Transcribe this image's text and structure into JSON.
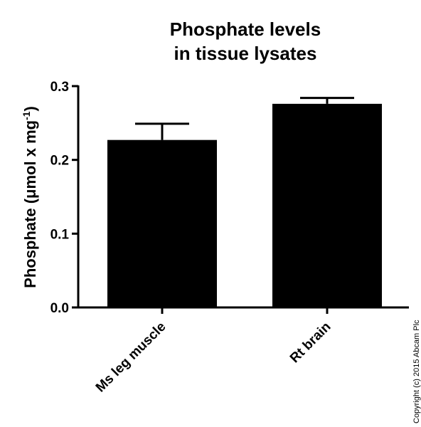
{
  "chart_data": {
    "type": "bar",
    "title_lines": [
      "Phosphate levels",
      "in tissue lysates"
    ],
    "ylabel": {
      "main": "Phosphate (",
      "mu": "μ",
      "unit": "mol x mg",
      "superscript": "-1",
      "close": ")"
    },
    "xlabel": "",
    "categories": [
      "Ms leg muscle",
      "Rt brain"
    ],
    "values": [
      0.227,
      0.276
    ],
    "error_upper": [
      0.022,
      0.008
    ],
    "ylim": [
      0,
      0.3
    ],
    "yticks": [
      0.0,
      0.1,
      0.2,
      0.3
    ],
    "ytick_labels": [
      "0.0",
      "0.1",
      "0.2",
      "0.3"
    ],
    "bar_color": "#000000",
    "grid": false,
    "legend": "none"
  },
  "copyright": "Copyright (c) 2015 Abcam Plc"
}
